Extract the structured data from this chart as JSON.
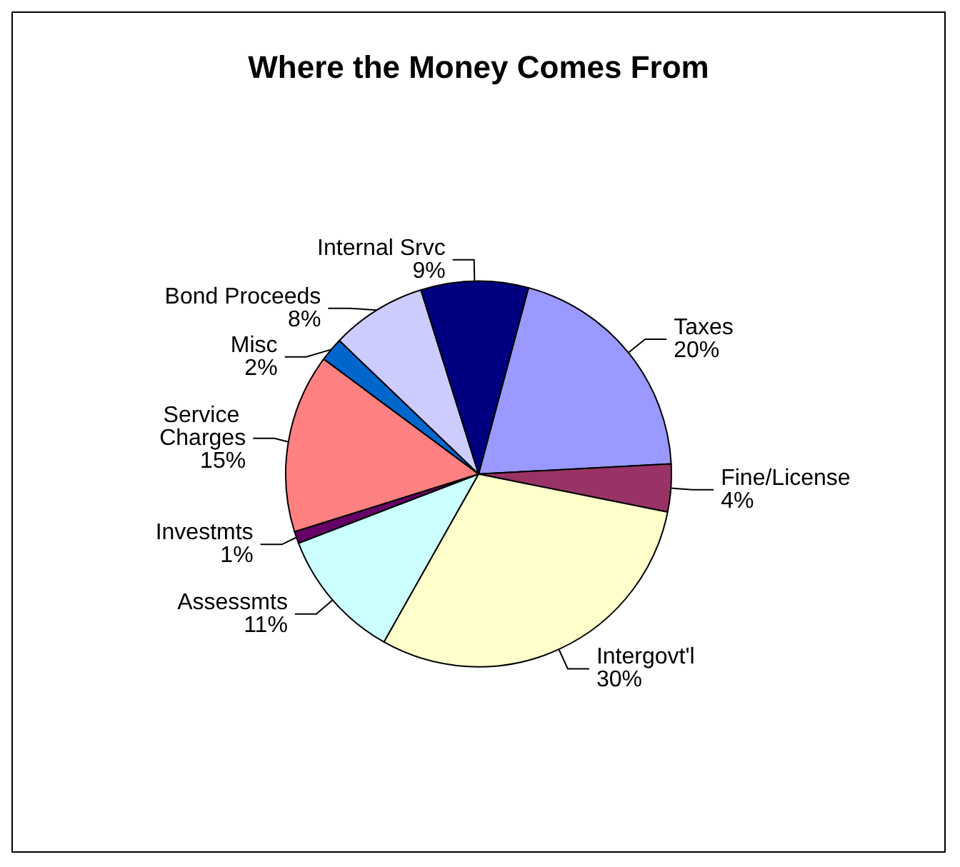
{
  "chart_data": {
    "type": "pie",
    "title": "Where the Money Comes From",
    "categories": [
      "Taxes",
      "Fine/License",
      "Intergovt'l",
      "Assessmts",
      "Investmts",
      "Service Charges",
      "Misc",
      "Bond Proceeds",
      "Internal Srvc"
    ],
    "values": [
      20,
      4,
      30,
      11,
      1,
      15,
      2,
      8,
      9
    ],
    "value_labels": [
      "20%",
      "4%",
      "30%",
      "11%",
      "1%",
      "15%",
      "2%",
      "8%",
      "9%"
    ],
    "colors": [
      "#9999ff",
      "#993366",
      "#ffffcc",
      "#ccffff",
      "#660066",
      "#ff8080",
      "#0066cc",
      "#ccccff",
      "#000080"
    ],
    "legend": false
  }
}
